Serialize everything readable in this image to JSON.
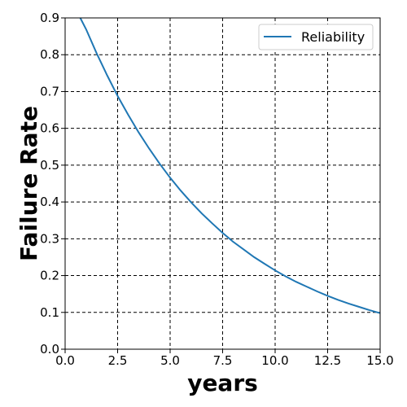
{
  "chart_data": {
    "type": "line",
    "title": "",
    "xlabel": "years",
    "ylabel": "Failure Rate",
    "xlim": [
      0,
      15
    ],
    "ylim": [
      0,
      0.9
    ],
    "xticks": [
      "0.0",
      "2.5",
      "5.0",
      "7.5",
      "10.0",
      "12.5",
      "15.0"
    ],
    "yticks": [
      "0.0",
      "0.1",
      "0.2",
      "0.3",
      "0.4",
      "0.5",
      "0.6",
      "0.7",
      "0.8",
      "0.9"
    ],
    "grid": true,
    "legend_position": "top-right",
    "series": [
      {
        "name": "Reliability",
        "color": "#1f77b4",
        "x": [
          0.72,
          1,
          1.5,
          2,
          2.5,
          3,
          3.5,
          4,
          4.5,
          5,
          5.5,
          6,
          6.5,
          7,
          7.5,
          8,
          8.5,
          9,
          9.5,
          10,
          10.5,
          11,
          11.5,
          12,
          12.5,
          13,
          13.5,
          14,
          14.5,
          15
        ],
        "y": [
          0.9,
          0.869,
          0.804,
          0.744,
          0.688,
          0.637,
          0.589,
          0.545,
          0.504,
          0.466,
          0.431,
          0.399,
          0.369,
          0.342,
          0.316,
          0.292,
          0.271,
          0.25,
          0.232,
          0.214,
          0.198,
          0.183,
          0.17,
          0.157,
          0.145,
          0.134,
          0.124,
          0.115,
          0.106,
          0.098
        ]
      }
    ]
  }
}
